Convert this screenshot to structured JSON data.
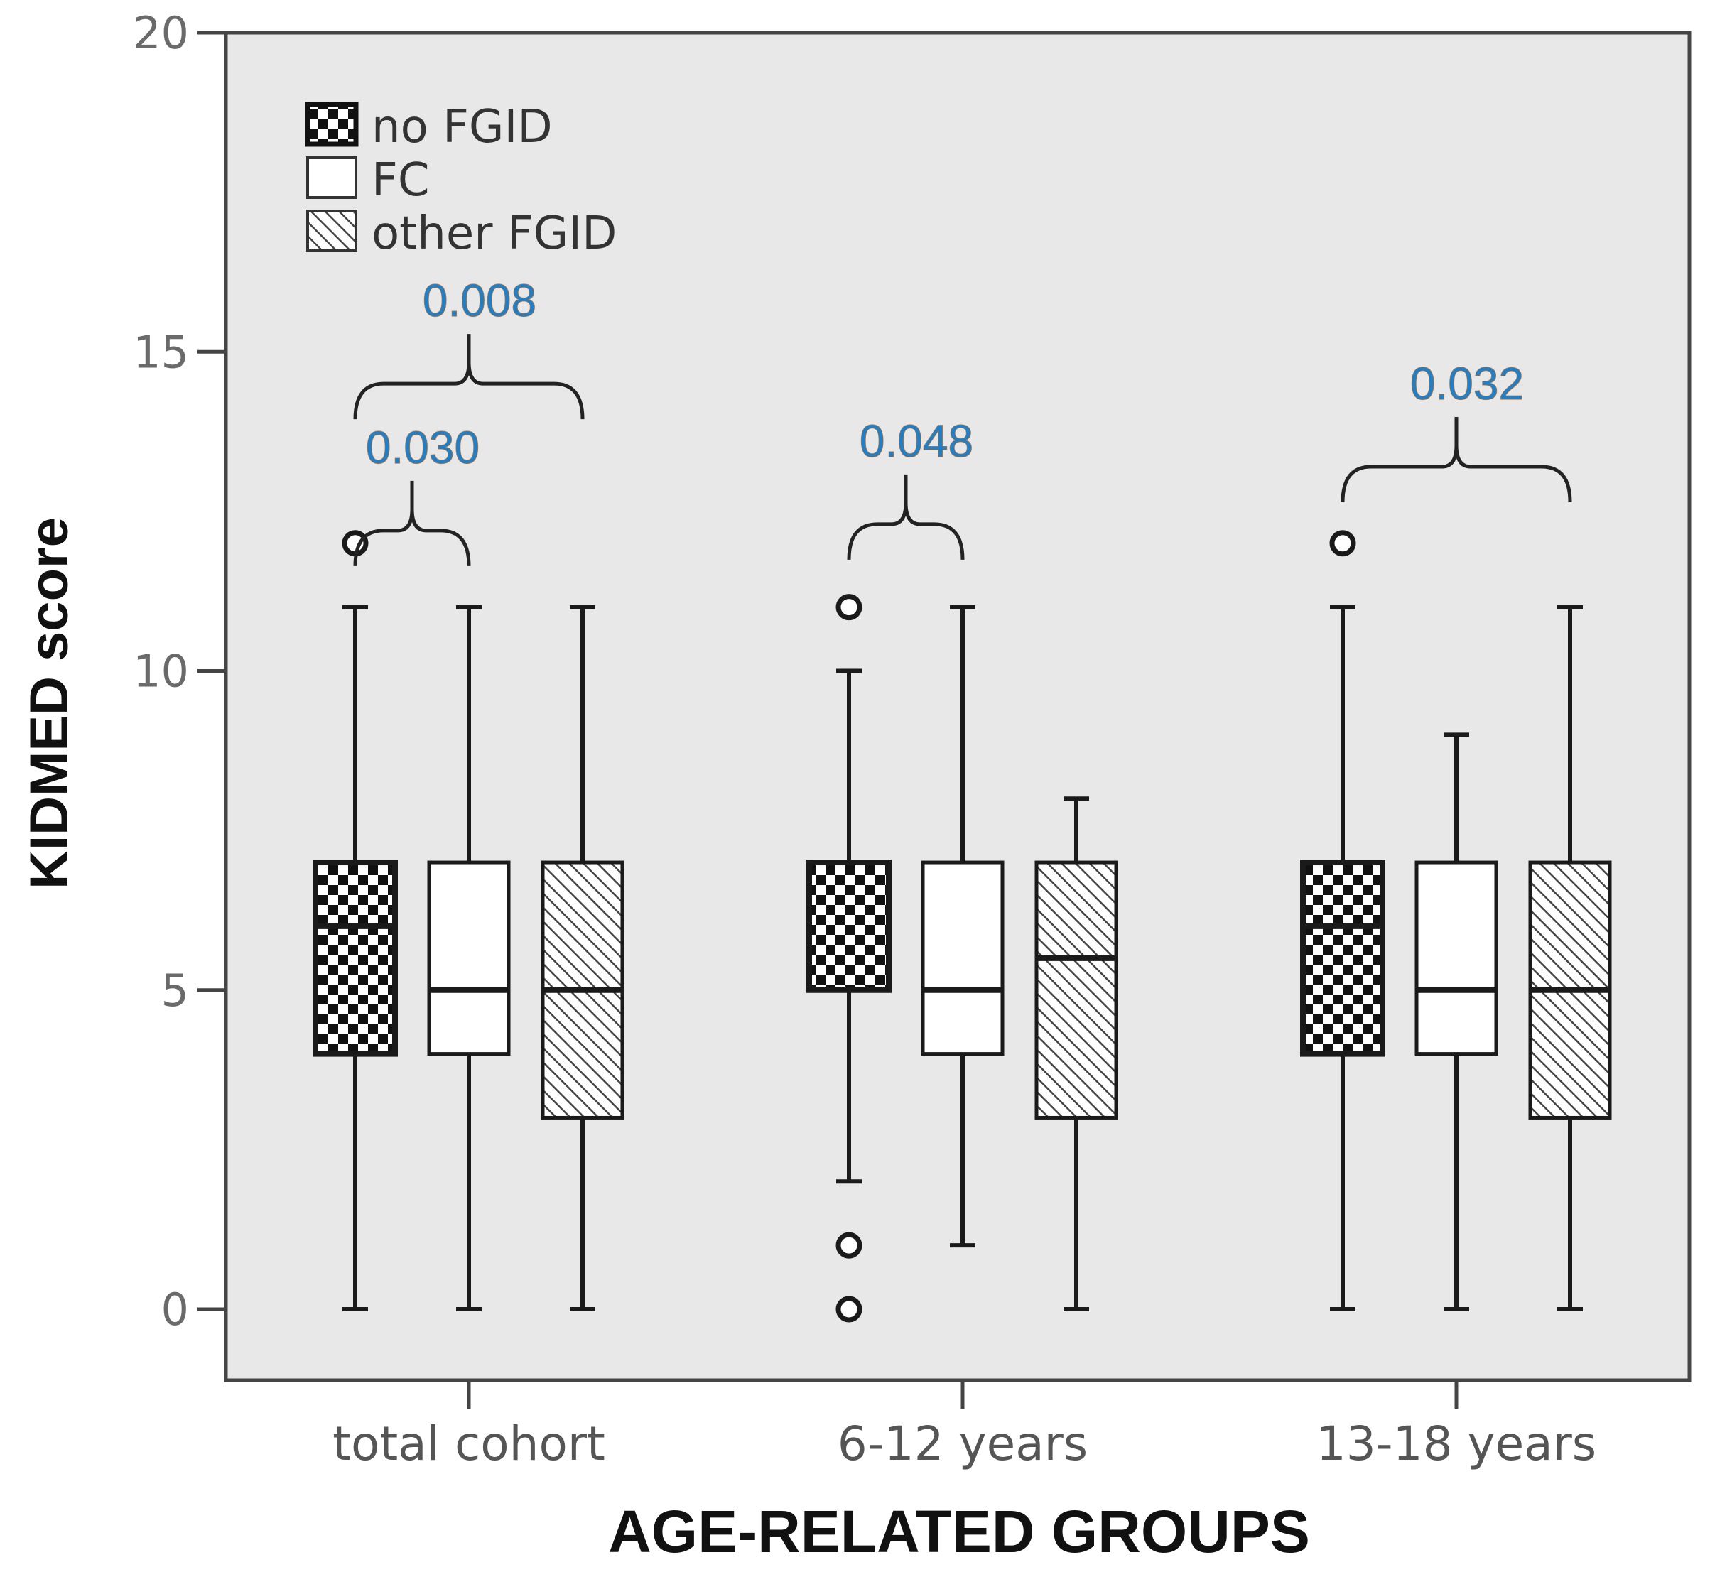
{
  "chart_data": {
    "type": "boxplot",
    "title": "",
    "xlabel": "AGE-RELATED GROUPS",
    "ylabel": "KIDMED score",
    "ylim": [
      -1,
      20
    ],
    "yticks": [
      0,
      5,
      10,
      15,
      20
    ],
    "categories": [
      "total cohort",
      "6-12 years",
      "13-18 years"
    ],
    "series": [
      {
        "name": "no FGID",
        "pattern": "checker",
        "boxes": [
          {
            "whisker_low": 0,
            "q1": 4,
            "median": 6,
            "q3": 7,
            "whisker_high": 11,
            "outliers": [
              12
            ]
          },
          {
            "whisker_low": 2,
            "q1": 5,
            "median": 7,
            "q3": 7,
            "whisker_high": 10,
            "outliers": [
              11,
              1,
              0
            ]
          },
          {
            "whisker_low": 0,
            "q1": 4,
            "median": 6,
            "q3": 7,
            "whisker_high": 11,
            "outliers": [
              12
            ]
          }
        ]
      },
      {
        "name": "FC",
        "pattern": "plain",
        "boxes": [
          {
            "whisker_low": 0,
            "q1": 4,
            "median": 5,
            "q3": 7,
            "whisker_high": 11,
            "outliers": []
          },
          {
            "whisker_low": 1,
            "q1": 4,
            "median": 5,
            "q3": 7,
            "whisker_high": 11,
            "outliers": []
          },
          {
            "whisker_low": 0,
            "q1": 4,
            "median": 5,
            "q3": 7,
            "whisker_high": 9,
            "outliers": []
          }
        ]
      },
      {
        "name": "other FGID",
        "pattern": "hatch",
        "boxes": [
          {
            "whisker_low": 0,
            "q1": 3,
            "median": 5,
            "q3": 7,
            "whisker_high": 11,
            "outliers": []
          },
          {
            "whisker_low": 0,
            "q1": 3,
            "median": 5.5,
            "q3": 7,
            "whisker_high": 8,
            "outliers": []
          },
          {
            "whisker_low": 0,
            "q1": 3,
            "median": 5,
            "q3": 7,
            "whisker_high": 11,
            "outliers": []
          }
        ]
      }
    ],
    "significance": [
      {
        "label": "0.008",
        "group": 0,
        "from_series": 0,
        "to_series": 2,
        "y": 14.5
      },
      {
        "label": "0.030",
        "group": 0,
        "from_series": 0,
        "to_series": 1,
        "y": 12.2
      },
      {
        "label": "0.048",
        "group": 1,
        "from_series": 0,
        "to_series": 1,
        "y": 12.3
      },
      {
        "label": "0.032",
        "group": 2,
        "from_series": 0,
        "to_series": 2,
        "y": 13.2
      }
    ],
    "legend": [
      "no FGID",
      "FC",
      "other FGID"
    ],
    "legend_position": "top-left",
    "colors": {
      "plot_bg": "#e8e8e8",
      "frame": "#444444",
      "box_stroke": "#1a1a1a",
      "pvalue_text": "#1f7fc8",
      "pvalue_text_alt": "#e8720c"
    }
  }
}
